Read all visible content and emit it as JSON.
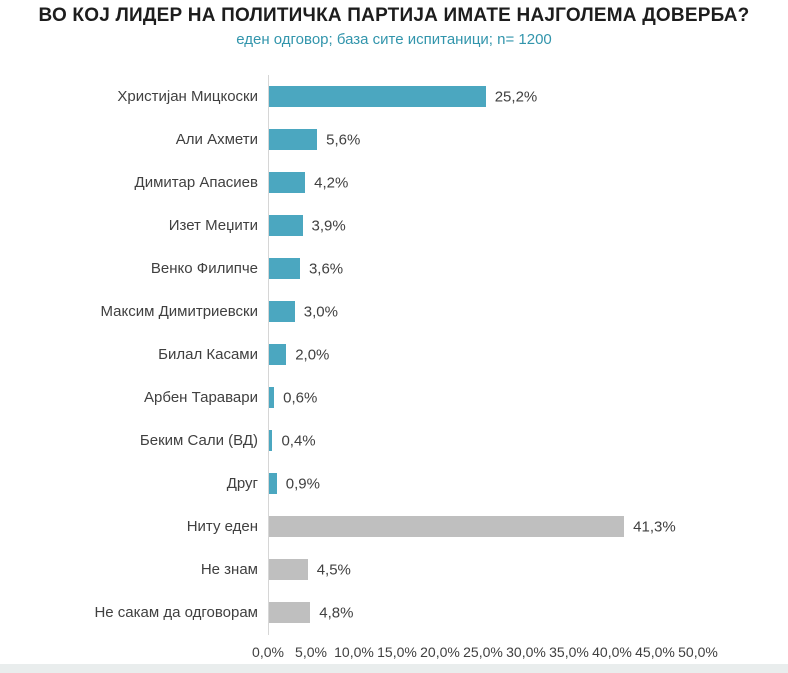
{
  "page": {
    "title": "ВО КОЈ ЛИДЕР НА ПОЛИТИЧКА ПАРТИЈА ИМАТЕ НАЈГОЛЕМА ДОВЕРБА?",
    "subtitle": "еден одговор; база сите испитаници; n= 1200"
  },
  "colors": {
    "bar_teal": "#4ba7c0",
    "bar_gray": "#bfbfbf",
    "title_text": "#1d1d1d",
    "subtitle_teal": "#3295ac",
    "label_text": "#404040",
    "axis_line": "#d6d6d6",
    "bottom_strip": "#e9eded"
  },
  "chart_data": {
    "type": "bar",
    "orientation": "horizontal",
    "title": "ВО КОЈ ЛИДЕР НА ПОЛИТИЧКА ПАРТИЈА ИМАТЕ НАЈГОЛЕМА ДОВЕРБА?",
    "subtitle": "еден одговор; база сите испитаници; n= 1200",
    "categories": [
      "Христијан Мицкоски",
      "Али Ахмети",
      "Димитар Апасиев",
      "Изет Меџити",
      "Венко Филипче",
      "Максим Димитриевски",
      "Билал Касами",
      "Арбен Таравари",
      "Беким Сали (ВД)",
      "Друг",
      "Ниту еден",
      "Не знам",
      "Не сакам да одговорам"
    ],
    "values": [
      25.2,
      5.6,
      4.2,
      3.9,
      3.6,
      3.0,
      2.0,
      0.6,
      0.4,
      0.9,
      41.3,
      4.5,
      4.8
    ],
    "value_labels": [
      "25,2%",
      "5,6%",
      "4,2%",
      "3,9%",
      "3,6%",
      "3,0%",
      "2,0%",
      "0,6%",
      "0,4%",
      "0,9%",
      "41,3%",
      "4,5%",
      "4,8%"
    ],
    "bar_colors": [
      "teal",
      "teal",
      "teal",
      "teal",
      "teal",
      "teal",
      "teal",
      "teal",
      "teal",
      "teal",
      "gray",
      "gray",
      "gray"
    ],
    "xlabel": "",
    "ylabel": "",
    "xlim": [
      0,
      50
    ],
    "x_ticks": [
      "0,0%",
      "5,0%",
      "10,0%",
      "15,0%",
      "20,0%",
      "25,0%",
      "30,0%",
      "35,0%",
      "40,0%",
      "45,0%",
      "50,0%"
    ],
    "grid": false,
    "legend": false
  }
}
